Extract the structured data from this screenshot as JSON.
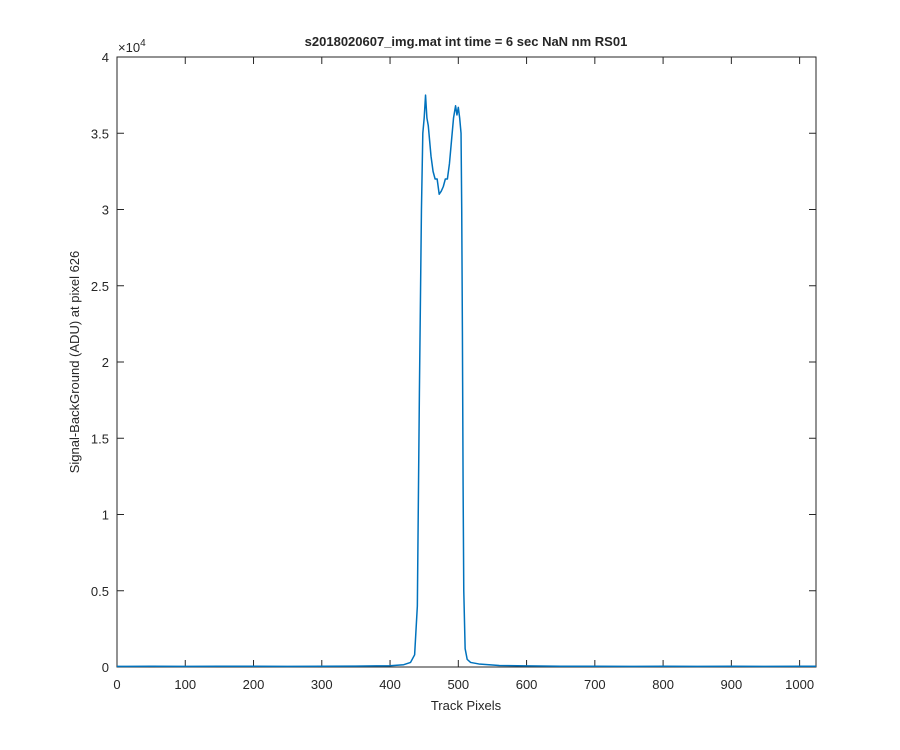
{
  "chart_data": {
    "type": "line",
    "title": "s2018020607_img.mat int time = 6 sec  NaN nm RS01",
    "x_label": "Track Pixels",
    "y_label": "Signal-BackGround (ADU) at pixel 626",
    "y_multiplier": {
      "base": "×10",
      "power": "4"
    },
    "color": "#0072bd",
    "x": [
      0,
      50,
      100,
      150,
      200,
      250,
      300,
      350,
      380,
      400,
      420,
      430,
      436,
      440,
      443,
      446,
      448,
      450,
      452,
      454,
      456,
      458,
      460,
      463,
      466,
      469,
      472,
      475,
      478,
      481,
      484,
      487,
      490,
      493,
      496,
      498,
      500,
      502,
      504,
      505,
      506,
      507,
      508,
      510,
      513,
      518,
      530,
      560,
      600,
      650,
      700,
      750,
      800,
      850,
      900,
      950,
      1000,
      1024
    ],
    "values": [
      0.004,
      0.005,
      0.004,
      0.005,
      0.005,
      0.004,
      0.005,
      0.006,
      0.007,
      0.008,
      0.015,
      0.03,
      0.08,
      0.4,
      1.8,
      3.0,
      3.5,
      3.6,
      3.75,
      3.6,
      3.55,
      3.45,
      3.35,
      3.25,
      3.2,
      3.2,
      3.1,
      3.12,
      3.15,
      3.2,
      3.2,
      3.3,
      3.45,
      3.6,
      3.68,
      3.62,
      3.67,
      3.6,
      3.5,
      3.0,
      2.2,
      1.2,
      0.5,
      0.12,
      0.05,
      0.03,
      0.02,
      0.01,
      0.007,
      0.005,
      0.005,
      0.004,
      0.005,
      0.004,
      0.005,
      0.004,
      0.005,
      0.005
    ],
    "xlim": [
      0,
      1024
    ],
    "ylim": [
      0,
      4
    ],
    "xticks": [
      0,
      100,
      200,
      300,
      400,
      500,
      600,
      700,
      800,
      900,
      1000
    ],
    "yticks": [
      0,
      0.5,
      1,
      1.5,
      2,
      2.5,
      3,
      3.5,
      4
    ]
  }
}
